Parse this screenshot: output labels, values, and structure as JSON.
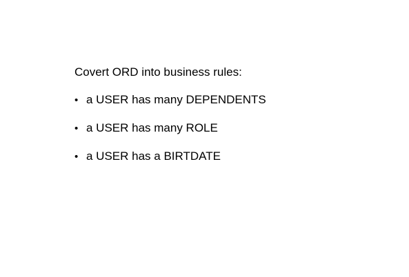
{
  "slide": {
    "heading": "Covert ORD into business rules:",
    "bullet_glyph": "•",
    "rules": [
      "a USER has many DEPENDENTS",
      "a USER has many ROLE",
      "a USER has a BIRTDATE"
    ]
  }
}
